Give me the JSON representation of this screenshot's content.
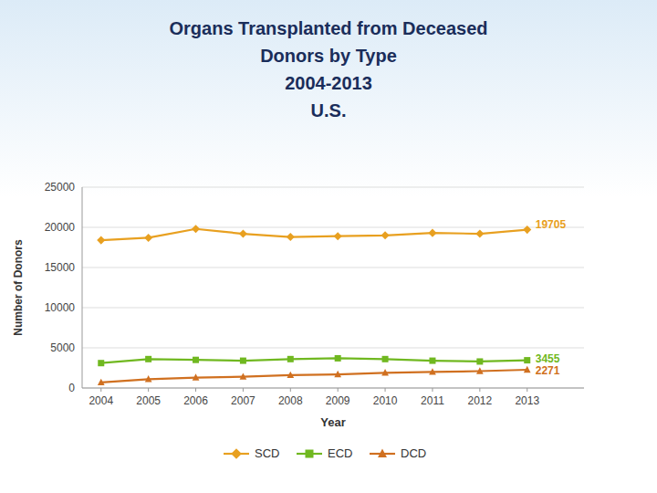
{
  "chart_data": {
    "type": "line",
    "title": "Organs Transplanted from Deceased\nDonors by Type\n2004-2013\nU.S.",
    "x_label": "Year",
    "y_label": "Number of Donors",
    "x": [
      2004,
      2005,
      2006,
      2007,
      2008,
      2009,
      2010,
      2011,
      2012,
      2013
    ],
    "series": [
      {
        "name": "SCD",
        "color": "#E8A020",
        "marker": "diamond",
        "values": [
          18400,
          18700,
          19800,
          19200,
          18800,
          18900,
          19000,
          19300,
          19200,
          19705
        ]
      },
      {
        "name": "ECD",
        "color": "#70B820",
        "marker": "square",
        "values": [
          3100,
          3600,
          3500,
          3400,
          3600,
          3700,
          3600,
          3400,
          3300,
          3455
        ]
      },
      {
        "name": "DCD",
        "color": "#D07020",
        "marker": "triangle",
        "values": [
          700,
          1100,
          1300,
          1400,
          1600,
          1700,
          1900,
          2000,
          2100,
          2271
        ]
      }
    ],
    "annotations": [
      {
        "text": "19705",
        "x": 2013,
        "y": 19705,
        "color": "#E8A020"
      },
      {
        "text": "3455",
        "x": 2013,
        "y": 3455,
        "color": "#70B820"
      },
      {
        "text": "2271",
        "x": 2013,
        "y": 2271,
        "color": "#D07020"
      }
    ],
    "xlim": [
      2003.6,
      2014.2
    ],
    "xticks": [
      2004,
      2005,
      2006,
      2007,
      2008,
      2009,
      2010,
      2011,
      2012,
      2013
    ],
    "ylim": [
      0,
      25000
    ],
    "yticks": [
      0,
      5000,
      10000,
      15000,
      20000,
      25000
    ],
    "grid": true,
    "legend": "bottom"
  }
}
